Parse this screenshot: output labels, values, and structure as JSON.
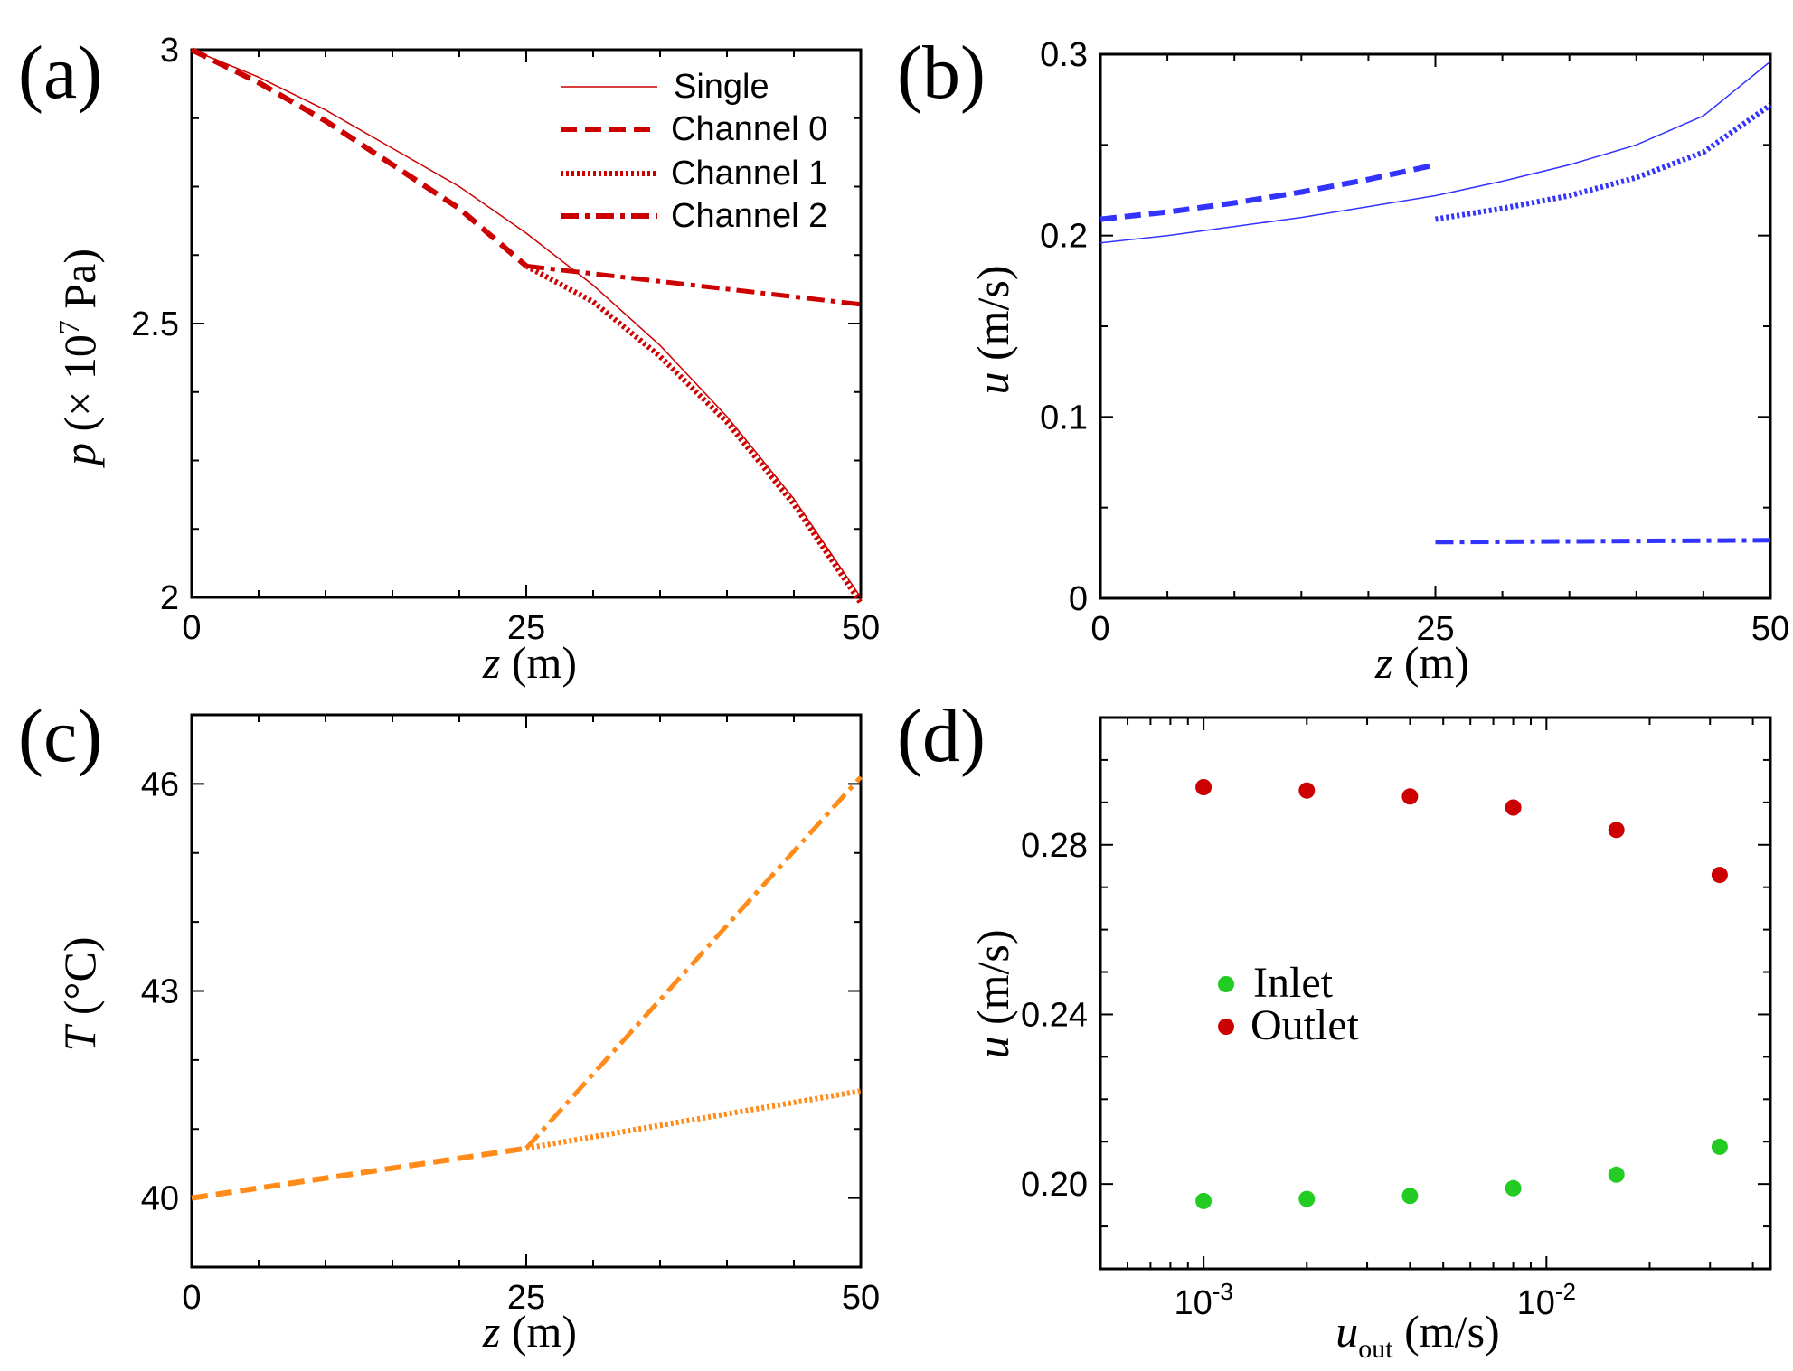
{
  "colors": {
    "red": "#cc0000",
    "blue": "#3333ff",
    "orange": "#ff8c1a",
    "green": "#22cc22",
    "dark_red": "#cc0000"
  },
  "chart_data": [
    {
      "panel": "(a)",
      "type": "line",
      "xlabel_var": "z",
      "xlabel_unit": " (m)",
      "ylabel_var": "p",
      "ylabel_pre": " (× 10",
      "ylabel_sup": "7",
      "ylabel_post": " Pa)",
      "xlim": [
        0,
        50
      ],
      "ylim": [
        2,
        3
      ],
      "xticks": [
        0,
        25,
        50
      ],
      "xtick_labels": [
        "0",
        "25",
        "50"
      ],
      "yticks": [
        2,
        2.5,
        3
      ],
      "ytick_labels": [
        "2",
        "2.5",
        "3"
      ],
      "legend_position": "top-right",
      "series": [
        {
          "name": "Single",
          "style": "thin",
          "x": [
            0,
            5,
            10,
            15,
            20,
            25,
            30,
            35,
            40,
            45,
            50
          ],
          "y": [
            3.0,
            2.95,
            2.89,
            2.82,
            2.75,
            2.665,
            2.57,
            2.46,
            2.33,
            2.18,
            2.0
          ]
        },
        {
          "name": "Channel 0",
          "style": "dashed",
          "x": [
            0,
            5,
            10,
            15,
            20,
            25
          ],
          "y": [
            3.0,
            2.94,
            2.87,
            2.79,
            2.71,
            2.605
          ]
        },
        {
          "name": "Channel 1",
          "style": "dotted",
          "x": [
            25,
            30,
            35,
            40,
            45,
            50
          ],
          "y": [
            2.605,
            2.54,
            2.44,
            2.32,
            2.17,
            1.99
          ]
        },
        {
          "name": "Channel 2",
          "style": "dashdot",
          "x": [
            25,
            50
          ],
          "y": [
            2.605,
            2.535
          ]
        }
      ]
    },
    {
      "panel": "(b)",
      "type": "line",
      "xlabel_var": "z",
      "xlabel_unit": " (m)",
      "ylabel_var": "u",
      "ylabel_unit": " (m/s)",
      "xlim": [
        0,
        50
      ],
      "ylim": [
        0,
        0.3
      ],
      "xticks": [
        0,
        25,
        50
      ],
      "xtick_labels": [
        "0",
        "25",
        "50"
      ],
      "yticks": [
        0,
        0.1,
        0.2,
        0.3
      ],
      "ytick_labels": [
        "0",
        "0.1",
        "0.2",
        "0.3"
      ],
      "series": [
        {
          "name": "Single",
          "style": "thin",
          "x": [
            0,
            5,
            10,
            15,
            20,
            25,
            30,
            35,
            40,
            45,
            50
          ],
          "y": [
            0.196,
            0.2,
            0.205,
            0.21,
            0.216,
            0.222,
            0.23,
            0.239,
            0.25,
            0.266,
            0.296
          ]
        },
        {
          "name": "Channel 0",
          "style": "dashed",
          "x": [
            0,
            5,
            10,
            15,
            20,
            25
          ],
          "y": [
            0.209,
            0.213,
            0.218,
            0.224,
            0.231,
            0.239
          ]
        },
        {
          "name": "Channel 1",
          "style": "dotted",
          "x": [
            25,
            30,
            35,
            40,
            45,
            50
          ],
          "y": [
            0.209,
            0.215,
            0.222,
            0.232,
            0.246,
            0.272
          ]
        },
        {
          "name": "Channel 2",
          "style": "dashdot",
          "x": [
            25,
            50
          ],
          "y": [
            0.031,
            0.032
          ]
        }
      ]
    },
    {
      "panel": "(c)",
      "type": "line",
      "xlabel_var": "z",
      "xlabel_unit": " (m)",
      "ylabel_var": "T",
      "ylabel_unit": " (°C)",
      "xlim": [
        0,
        50
      ],
      "ylim": [
        39,
        47
      ],
      "xticks": [
        0,
        25,
        50
      ],
      "xtick_labels": [
        "0",
        "25",
        "50"
      ],
      "yticks": [
        40,
        43,
        46
      ],
      "ytick_labels": [
        "40",
        "43",
        "46"
      ],
      "series": [
        {
          "name": "Channel 0",
          "style": "dashed",
          "x": [
            0,
            25
          ],
          "y": [
            40.0,
            40.72
          ]
        },
        {
          "name": "Channel 1",
          "style": "dotted",
          "x": [
            25,
            50
          ],
          "y": [
            40.72,
            41.55
          ]
        },
        {
          "name": "Channel 2",
          "style": "dashdot",
          "x": [
            25,
            50
          ],
          "y": [
            40.72,
            46.1
          ]
        }
      ]
    },
    {
      "panel": "(d)",
      "type": "scatter",
      "xscale": "log",
      "xlabel_var": "u",
      "xlabel_sub": "out",
      "xlabel_unit": " (m/s)",
      "ylabel_var": "u",
      "ylabel_unit": " (m/s)",
      "xlim": [
        0.0005,
        0.045
      ],
      "ylim": [
        0.18,
        0.31
      ],
      "xticks": [
        0.001,
        0.01
      ],
      "xtick_base": "10",
      "xtick_exponents": [
        "-3",
        "-2"
      ],
      "yticks": [
        0.2,
        0.24,
        0.28
      ],
      "ytick_labels": [
        "0.20",
        "0.24",
        "0.28"
      ],
      "legend_position": "center-left",
      "series": [
        {
          "name": "Inlet",
          "x": [
            0.001,
            0.002,
            0.004,
            0.008,
            0.016,
            0.032
          ],
          "y": [
            0.196,
            0.1965,
            0.1972,
            0.199,
            0.2022,
            0.2088
          ]
        },
        {
          "name": "Outlet",
          "x": [
            0.001,
            0.002,
            0.004,
            0.008,
            0.016,
            0.032
          ],
          "y": [
            0.2936,
            0.2928,
            0.2914,
            0.2888,
            0.2835,
            0.2729
          ]
        }
      ]
    }
  ]
}
